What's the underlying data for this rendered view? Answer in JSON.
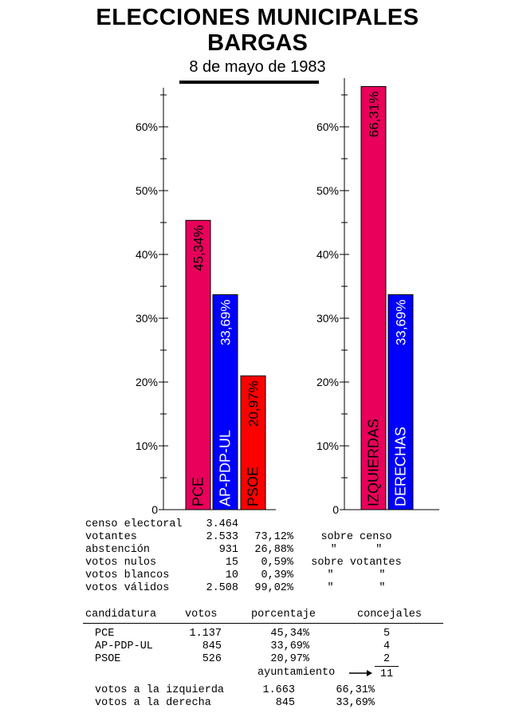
{
  "header": {
    "title": "ELECCIONES  MUNICIPALES",
    "subtitle": "BARGAS",
    "date": "8 de mayo de 1983"
  },
  "colors": {
    "pce": "#e8005a",
    "ap": "#0000ff",
    "psoe": "#ff0000"
  },
  "chart_data": [
    {
      "type": "bar",
      "categories": [
        "PCE",
        "AP-PDP-UL",
        "PSOE"
      ],
      "values": [
        45.34,
        33.69,
        20.97
      ],
      "value_labels": [
        "45,34%",
        "33,69%",
        "20,97%"
      ],
      "colors": [
        "#e8005a",
        "#0000ff",
        "#ff0000"
      ],
      "ylim": [
        0,
        65
      ],
      "yticks": [
        "0",
        "10%",
        "20%",
        "30%",
        "40%",
        "50%",
        "60%"
      ]
    },
    {
      "type": "bar",
      "categories": [
        "IZQUIERDAS",
        "DERECHAS"
      ],
      "values": [
        66.31,
        33.69
      ],
      "value_labels": [
        "66,31%",
        "33,69%"
      ],
      "colors": [
        "#e8005a",
        "#0000ff"
      ],
      "ylim": [
        0,
        65
      ],
      "yticks": [
        "0",
        "10%",
        "20%",
        "30%",
        "40%",
        "50%",
        "60%"
      ]
    }
  ],
  "stats": [
    {
      "label": "censo electoral",
      "value": "3.464",
      "pct": "",
      "note": ""
    },
    {
      "label": "votantes",
      "value": "2.533",
      "pct": "73,12%",
      "note": "sobre censo"
    },
    {
      "label": "abstención",
      "value": "931",
      "pct": "26,88%",
      "note": "\"      \""
    },
    {
      "label": "votos nulos",
      "value": "15",
      "pct": "0,59%",
      "note": "sobre votantes"
    },
    {
      "label": "votos blancos",
      "value": "10",
      "pct": "0,39%",
      "note": "\"       \""
    },
    {
      "label": "votos válidos",
      "value": "2.508",
      "pct": "99,02%",
      "note": "\"       \""
    }
  ],
  "results_table": {
    "headers": [
      "candidatura",
      "votos",
      "porcentaje",
      "concejales"
    ],
    "rows": [
      {
        "party": "PCE",
        "votes": "1.137",
        "pct": "45,34%",
        "seats": "5"
      },
      {
        "party": "AP-PDP-UL",
        "votes": "845",
        "pct": "33,69%",
        "seats": "4"
      },
      {
        "party": "PSOE",
        "votes": "526",
        "pct": "20,97%",
        "seats": "2"
      }
    ],
    "total_label": "ayuntamiento",
    "total_seats": "11"
  },
  "blocks": [
    {
      "label": "votos a la izquierda",
      "votes": "1.663",
      "pct": "66,31%"
    },
    {
      "label": "votos a la derecha",
      "votes": "845",
      "pct": "33,69%"
    }
  ]
}
